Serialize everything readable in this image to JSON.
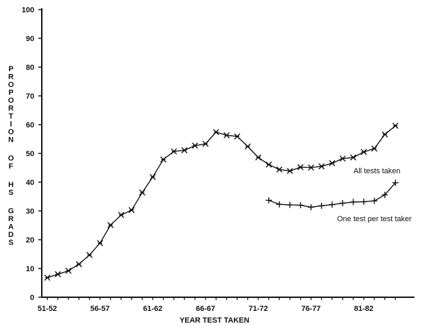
{
  "chart_data": {
    "type": "line",
    "title": "",
    "xlabel": "YEAR TEST TAKEN",
    "ylabel": "PROPORTION OF HS GRADS",
    "ylim": [
      0,
      100
    ],
    "yticks": [
      0,
      10,
      20,
      30,
      40,
      50,
      60,
      70,
      80,
      90,
      100
    ],
    "x_tick_labels": [
      "51-52",
      "56-57",
      "61-62",
      "66-67",
      "71-72",
      "76-77",
      "81-82"
    ],
    "x_tick_positions": [
      0,
      5,
      10,
      15,
      20,
      25,
      30
    ],
    "x_range": [
      0,
      33
    ],
    "grid": false,
    "legend": "none",
    "series": [
      {
        "name": "All tests taken",
        "marker": "asterisk",
        "x": [
          0,
          1,
          2,
          3,
          4,
          5,
          6,
          7,
          8,
          9,
          10,
          11,
          12,
          13,
          14,
          15,
          16,
          17,
          18,
          19,
          20,
          21,
          22,
          23,
          24,
          25,
          26,
          27,
          28,
          29,
          30,
          31,
          32,
          33
        ],
        "values": [
          6.8,
          8.0,
          9.2,
          11.5,
          14.7,
          18.8,
          25.1,
          28.6,
          30.3,
          36.4,
          41.8,
          47.9,
          50.7,
          51.1,
          52.7,
          53.3,
          57.4,
          56.3,
          55.9,
          52.4,
          48.6,
          46.1,
          44.4,
          43.9,
          45.2,
          45.1,
          45.5,
          46.6,
          48.2,
          48.6,
          50.5,
          51.7,
          56.6,
          59.6
        ]
      },
      {
        "name": "One test per test taker",
        "marker": "plus",
        "x": [
          21,
          22,
          23,
          24,
          25,
          26,
          27,
          28,
          29,
          30,
          31,
          32,
          33
        ],
        "values": [
          33.7,
          32.3,
          32.1,
          32.0,
          31.3,
          31.8,
          32.2,
          32.7,
          33.1,
          33.2,
          33.5,
          35.6,
          39.8
        ]
      }
    ]
  }
}
